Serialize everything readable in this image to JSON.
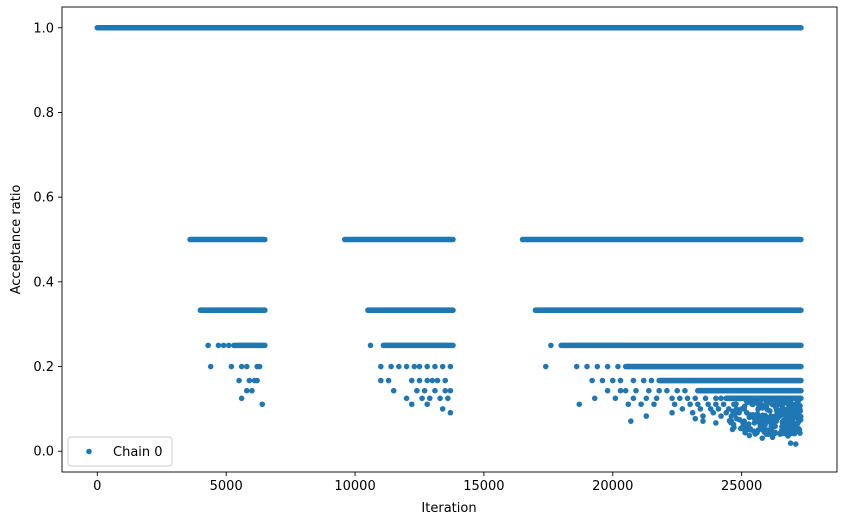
{
  "chart_data": {
    "type": "scatter",
    "xlabel": "Iteration",
    "ylabel": "Acceptance ratio",
    "xlim": [
      -1370,
      28700
    ],
    "ylim": [
      -0.049,
      1.049
    ],
    "xticks": [
      0,
      5000,
      10000,
      15000,
      20000,
      25000
    ],
    "yticks": [
      0.0,
      0.2,
      0.4,
      0.6,
      0.8,
      1.0
    ],
    "xtick_labels": [
      "0",
      "5000",
      "10000",
      "15000",
      "20000",
      "25000"
    ],
    "ytick_labels": [
      "0.0",
      "0.2",
      "0.4",
      "0.6",
      "0.8",
      "1.0"
    ],
    "legend": {
      "position": "lower-left",
      "entries": [
        "Chain 0"
      ]
    },
    "grid": false,
    "series": [
      {
        "name": "Chain 0",
        "color": "#1f77b4",
        "bands": [
          {
            "y": 1.0,
            "x_range": [
              0,
              27300
            ]
          },
          {
            "y": 0.5,
            "x_range": [
              3600,
              6500
            ]
          },
          {
            "y": 0.5,
            "x_range": [
              9600,
              13800
            ]
          },
          {
            "y": 0.5,
            "x_range": [
              16500,
              27300
            ]
          },
          {
            "y": 0.333,
            "x_range": [
              4000,
              6500
            ]
          },
          {
            "y": 0.333,
            "x_range": [
              10500,
              13800
            ]
          },
          {
            "y": 0.333,
            "x_range": [
              17000,
              27300
            ]
          },
          {
            "y": 0.25,
            "x_range": [
              5300,
              6500
            ]
          },
          {
            "y": 0.25,
            "x_range": [
              11100,
              13800
            ]
          },
          {
            "y": 0.25,
            "x_range": [
              18000,
              27300
            ]
          },
          {
            "y": 0.2,
            "x_range": [
              20500,
              27300
            ]
          },
          {
            "y": 0.167,
            "x_range": [
              21800,
              27300
            ]
          },
          {
            "y": 0.143,
            "x_range": [
              23300,
              27300
            ]
          },
          {
            "y": 0.125,
            "x_range": [
              24400,
              27300
            ]
          }
        ],
        "points": [
          [
            4300,
            0.25
          ],
          [
            4700,
            0.25
          ],
          [
            4900,
            0.25
          ],
          [
            5100,
            0.25
          ],
          [
            4400,
            0.2
          ],
          [
            5200,
            0.2
          ],
          [
            5600,
            0.2
          ],
          [
            5800,
            0.2
          ],
          [
            6200,
            0.2
          ],
          [
            6300,
            0.2
          ],
          [
            5500,
            0.167
          ],
          [
            5900,
            0.167
          ],
          [
            6100,
            0.167
          ],
          [
            6200,
            0.167
          ],
          [
            5800,
            0.143
          ],
          [
            6000,
            0.143
          ],
          [
            5600,
            0.125
          ],
          [
            6400,
            0.111
          ],
          [
            10600,
            0.25
          ],
          [
            11000,
            0.2
          ],
          [
            11400,
            0.2
          ],
          [
            11700,
            0.2
          ],
          [
            12000,
            0.2
          ],
          [
            12300,
            0.2
          ],
          [
            12500,
            0.2
          ],
          [
            12800,
            0.2
          ],
          [
            13100,
            0.2
          ],
          [
            13400,
            0.2
          ],
          [
            13700,
            0.2
          ],
          [
            11000,
            0.167
          ],
          [
            11300,
            0.167
          ],
          [
            12200,
            0.167
          ],
          [
            12500,
            0.167
          ],
          [
            12800,
            0.167
          ],
          [
            13000,
            0.167
          ],
          [
            13200,
            0.167
          ],
          [
            13500,
            0.167
          ],
          [
            11500,
            0.143
          ],
          [
            12400,
            0.143
          ],
          [
            12700,
            0.143
          ],
          [
            13100,
            0.143
          ],
          [
            13500,
            0.143
          ],
          [
            13700,
            0.143
          ],
          [
            12000,
            0.125
          ],
          [
            12600,
            0.125
          ],
          [
            12900,
            0.125
          ],
          [
            13300,
            0.125
          ],
          [
            13600,
            0.125
          ],
          [
            12200,
            0.111
          ],
          [
            12800,
            0.111
          ],
          [
            13400,
            0.1
          ],
          [
            13700,
            0.091
          ],
          [
            17400,
            0.2
          ],
          [
            17600,
            0.25
          ],
          [
            18600,
            0.2
          ],
          [
            19000,
            0.2
          ],
          [
            19400,
            0.2
          ],
          [
            19800,
            0.2
          ],
          [
            20200,
            0.2
          ],
          [
            19200,
            0.167
          ],
          [
            19600,
            0.167
          ],
          [
            20000,
            0.167
          ],
          [
            20300,
            0.167
          ],
          [
            20800,
            0.167
          ],
          [
            21200,
            0.167
          ],
          [
            21500,
            0.167
          ],
          [
            19800,
            0.143
          ],
          [
            20300,
            0.143
          ],
          [
            20500,
            0.143
          ],
          [
            20900,
            0.143
          ],
          [
            21400,
            0.143
          ],
          [
            21800,
            0.143
          ],
          [
            22100,
            0.143
          ],
          [
            22500,
            0.143
          ],
          [
            22800,
            0.143
          ],
          [
            19300,
            0.125
          ],
          [
            20100,
            0.125
          ],
          [
            20800,
            0.125
          ],
          [
            21300,
            0.125
          ],
          [
            21700,
            0.125
          ],
          [
            22300,
            0.125
          ],
          [
            22600,
            0.125
          ],
          [
            22900,
            0.125
          ],
          [
            23200,
            0.125
          ],
          [
            23600,
            0.125
          ],
          [
            24000,
            0.125
          ],
          [
            24200,
            0.125
          ],
          [
            18700,
            0.111
          ],
          [
            20600,
            0.111
          ],
          [
            21100,
            0.111
          ],
          [
            21600,
            0.111
          ],
          [
            22400,
            0.111
          ],
          [
            23000,
            0.111
          ],
          [
            23300,
            0.111
          ],
          [
            23700,
            0.111
          ],
          [
            24000,
            0.111
          ],
          [
            24300,
            0.111
          ],
          [
            24700,
            0.111
          ],
          [
            22700,
            0.1
          ],
          [
            23400,
            0.1
          ],
          [
            23800,
            0.1
          ],
          [
            24100,
            0.1
          ],
          [
            24500,
            0.1
          ],
          [
            24800,
            0.1
          ],
          [
            25100,
            0.1
          ],
          [
            22300,
            0.091
          ],
          [
            23100,
            0.091
          ],
          [
            23900,
            0.091
          ],
          [
            24400,
            0.091
          ],
          [
            24900,
            0.091
          ],
          [
            25200,
            0.091
          ],
          [
            21300,
            0.083
          ],
          [
            23500,
            0.083
          ],
          [
            24200,
            0.083
          ],
          [
            24600,
            0.083
          ],
          [
            25300,
            0.083
          ],
          [
            23200,
            0.077
          ],
          [
            24800,
            0.077
          ],
          [
            25500,
            0.077
          ],
          [
            20700,
            0.071
          ],
          [
            23500,
            0.071
          ],
          [
            24600,
            0.071
          ],
          [
            25100,
            0.071
          ],
          [
            26000,
            0.071
          ],
          [
            24000,
            0.067
          ],
          [
            25700,
            0.067
          ],
          [
            26200,
            0.067
          ],
          [
            25100,
            0.059
          ],
          [
            26300,
            0.059
          ],
          [
            24700,
            0.056
          ],
          [
            26600,
            0.053
          ],
          [
            25900,
            0.045
          ],
          [
            26300,
            0.043
          ],
          [
            26900,
            0.042
          ],
          [
            25300,
            0.037
          ],
          [
            26800,
            0.036
          ],
          [
            26200,
            0.033
          ],
          [
            25800,
            0.031
          ],
          [
            26900,
            0.019
          ],
          [
            27100,
            0.017
          ]
        ],
        "dense_region": {
          "x_range": [
            24300,
            27300
          ],
          "y_range": [
            0.04,
            0.125
          ]
        }
      }
    ]
  }
}
